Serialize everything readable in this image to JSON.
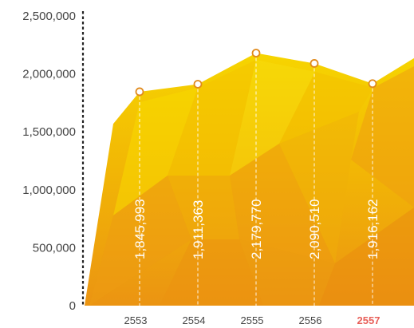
{
  "chart_data": {
    "type": "area",
    "categories": [
      "2553",
      "2554",
      "2555",
      "2556",
      "2557"
    ],
    "values": [
      1845993,
      1911363,
      2179770,
      2090510,
      1916162
    ],
    "data_labels": [
      "1,845,993",
      "1,911,363",
      "2,179,770",
      "2,090,510",
      "1,916,162"
    ],
    "highlight_category": "2557",
    "yticks": [
      0,
      500000,
      1000000,
      1500000,
      2000000,
      2500000
    ],
    "ytick_labels": [
      "0",
      "500,000",
      "1,000,000",
      "1,500,000",
      "2,000,000",
      "2,500,000"
    ],
    "ylim": [
      0,
      2500000
    ],
    "grid": false,
    "colors": {
      "fill_light": "#f5d400",
      "fill_mid": "#f2b705",
      "fill_dark": "#ec9a10",
      "marker_stroke": "#e08a1c",
      "highlight_tick": "#e8605a",
      "axis": "#222222"
    }
  }
}
